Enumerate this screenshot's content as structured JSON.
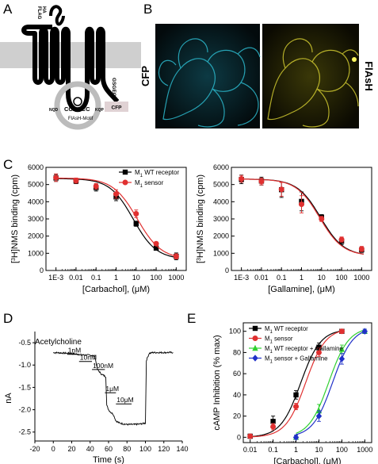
{
  "panels": {
    "a": {
      "letter": "A",
      "tag_ha": "HA",
      "tag_flag": "FLAG",
      "linker": "GSGEG",
      "cfp_label": "CFP",
      "motif_left": "NQD",
      "motif_core": "CCPGCC",
      "motif_right": "KQP",
      "motif_caption": "FlAsH-Motif"
    },
    "b": {
      "letter": "B",
      "label_left": "CFP",
      "label_right": "FlAsH",
      "colors": {
        "cfp": "#28b4c8",
        "flash": "#c8c028"
      }
    },
    "c": {
      "letter": "C",
      "charts": [
        {
          "type": "line",
          "xlabel": "[Carbachol], (μM)",
          "ylabel_pre": "[",
          "ylabel_sup": "3",
          "ylabel_post": "H]NMS binding (cpm)",
          "x_ticks": [
            "1E-3",
            "0.01",
            "0.1",
            "1",
            "10",
            "100",
            "1000"
          ],
          "y_ticks": [
            "0",
            "1000",
            "2000",
            "3000",
            "4000",
            "5000",
            "6000"
          ],
          "xlim_log10": [
            -3.5,
            3.5
          ],
          "ylim": [
            0,
            6000
          ],
          "legend": [
            {
              "pre": "M",
              "sub": "1",
              "post": " WT receptor",
              "color": "#000000",
              "marker": "square"
            },
            {
              "pre": "M",
              "sub": "1",
              "post": " sensor",
              "color": "#e03030",
              "marker": "circle"
            }
          ],
          "series": [
            {
              "points": [
                [
                  0.001,
                  5380,
                  200
                ],
                [
                  0.01,
                  5200,
                  150
                ],
                [
                  0.1,
                  4820,
                  200
                ],
                [
                  1,
                  4280,
                  220
                ],
                [
                  10,
                  2720,
                  150
                ],
                [
                  100,
                  1300,
                  120
                ],
                [
                  1000,
                  820,
                  200
                ]
              ],
              "color": "#000000",
              "marker": "square",
              "fit": {
                "top": 5350,
                "bottom": 650,
                "logEC50": 0.85,
                "slope": 0.75
              }
            },
            {
              "points": [
                [
                  0.001,
                  5400,
                  220
                ],
                [
                  0.01,
                  5230,
                  150
                ],
                [
                  0.1,
                  4900,
                  160
                ],
                [
                  1,
                  4450,
                  250
                ],
                [
                  10,
                  3300,
                  220
                ],
                [
                  100,
                  1560,
                  100
                ],
                [
                  1000,
                  820,
                  150
                ]
              ],
              "color": "#e03030",
              "marker": "circle",
              "fit": {
                "top": 5380,
                "bottom": 650,
                "logEC50": 1.05,
                "slope": 0.72
              }
            }
          ]
        },
        {
          "type": "line",
          "xlabel": "[Gallamine], (μM)",
          "ylabel_pre": "[",
          "ylabel_sup": "3",
          "ylabel_post": "H]NMS binding (cpm)",
          "x_ticks": [
            "1E-3",
            "0.01",
            "0.1",
            "1",
            "10",
            "100",
            "1000"
          ],
          "y_ticks": [
            "0",
            "1000",
            "2000",
            "3000",
            "4000",
            "5000",
            "6000"
          ],
          "xlim_log10": [
            -3.5,
            3.5
          ],
          "ylim": [
            0,
            6000
          ],
          "series": [
            {
              "points": [
                [
                  0.001,
                  5300,
                  250
                ],
                [
                  0.01,
                  5200,
                  230
                ],
                [
                  0.1,
                  4700,
                  450
                ],
                [
                  1,
                  4020,
                  550
                ],
                [
                  10,
                  3100,
                  150
                ],
                [
                  100,
                  1700,
                  200
                ],
                [
                  1000,
                  1200,
                  150
                ]
              ],
              "color": "#000000",
              "marker": "square",
              "fit": {
                "top": 5320,
                "bottom": 850,
                "logEC50": 0.95,
                "slope": 0.75
              }
            },
            {
              "points": [
                [
                  0.001,
                  5330,
                  200
                ],
                [
                  0.01,
                  5180,
                  200
                ],
                [
                  0.1,
                  4720,
                  400
                ],
                [
                  1,
                  3850,
                  500
                ],
                [
                  10,
                  3000,
                  150
                ],
                [
                  100,
                  1800,
                  150
                ],
                [
                  1000,
                  1250,
                  150
                ]
              ],
              "color": "#e03030",
              "marker": "circle",
              "fit": {
                "top": 5320,
                "bottom": 850,
                "logEC50": 0.9,
                "slope": 0.75
              }
            }
          ]
        }
      ]
    },
    "d": {
      "letter": "D",
      "type": "line",
      "xlabel": "Time (s)",
      "ylabel": "nA",
      "x_ticks": [
        "-20",
        "0",
        "20",
        "40",
        "60",
        "80",
        "100",
        "120",
        "140"
      ],
      "y_ticks": [
        "-2.5",
        "-2.0",
        "-1.5",
        "-1.0",
        "-0.5"
      ],
      "xlim": [
        -20,
        140
      ],
      "ylim": [
        -2.7,
        -0.25
      ],
      "drug_label": "Acetylcholine",
      "concentrations": [
        {
          "label": "1nM",
          "start": 15,
          "end": 28,
          "level": -0.76
        },
        {
          "label": "10nM",
          "start": 28,
          "end": 42,
          "level": -0.92
        },
        {
          "label": "100nM",
          "start": 42,
          "end": 56,
          "level": -1.1
        },
        {
          "label": "1μM",
          "start": 56,
          "end": 68,
          "level": -1.62
        },
        {
          "label": "10μM",
          "start": 68,
          "end": 85,
          "level": -1.87
        }
      ],
      "trace": [
        [
          0,
          -0.72
        ],
        [
          10,
          -0.73
        ],
        [
          20,
          -0.74
        ],
        [
          30,
          -0.77
        ],
        [
          40,
          -0.78
        ],
        [
          45,
          -0.8
        ],
        [
          48,
          -1.1
        ],
        [
          52,
          -1.2
        ],
        [
          57,
          -1.26
        ],
        [
          58,
          -1.9
        ],
        [
          60,
          -2.0
        ],
        [
          62,
          -2.05
        ],
        [
          65,
          -2.1
        ],
        [
          68,
          -2.25
        ],
        [
          72,
          -2.3
        ],
        [
          80,
          -2.33
        ],
        [
          88,
          -2.33
        ],
        [
          94,
          -2.32
        ],
        [
          100,
          -2.3
        ],
        [
          101,
          -0.9
        ],
        [
          104,
          -0.74
        ],
        [
          108,
          -0.72
        ],
        [
          118,
          -0.72
        ],
        [
          130,
          -0.72
        ]
      ]
    },
    "e": {
      "letter": "E",
      "type": "line",
      "xlabel": "[Carbachol], (μM)",
      "ylabel": "cAMP Inhibition (% max)",
      "x_ticks": [
        "0.01",
        "0.1",
        "1",
        "10",
        "100",
        "1000"
      ],
      "y_ticks": [
        "0",
        "20",
        "40",
        "60",
        "80",
        "100"
      ],
      "xlim_log10": [
        -2.3,
        3.3
      ],
      "ylim": [
        -5,
        108
      ],
      "legend": [
        {
          "pre": "M",
          "sub": "1",
          "post": " WT receptor",
          "color": "#000000",
          "marker": "square"
        },
        {
          "pre": "M",
          "sub": "1",
          "post": " sensor",
          "color": "#e03030",
          "marker": "circle"
        },
        {
          "pre": "M",
          "sub": "1",
          "post": " WT receptor + Gallamine",
          "color": "#30d030",
          "marker": "triangle"
        },
        {
          "pre": "M",
          "sub": "1",
          "post": " sensor + Gallamine",
          "color": "#2030c8",
          "marker": "diamond"
        }
      ],
      "series": [
        {
          "points": [
            [
              0.01,
              1,
              2
            ],
            [
              0.1,
              15,
              5
            ],
            [
              1,
              40,
              4
            ],
            [
              10,
              85,
              4
            ],
            [
              100,
              100,
              2
            ]
          ],
          "color": "#000000",
          "marker": "square",
          "fit": {
            "top": 102,
            "bottom": 0,
            "logEC50": 0.2,
            "slope": 1.0
          }
        },
        {
          "points": [
            [
              0.01,
              1,
              2
            ],
            [
              0.1,
              10,
              3
            ],
            [
              1,
              29,
              3
            ],
            [
              10,
              80,
              4
            ],
            [
              100,
              100,
              2
            ]
          ],
          "color": "#e03030",
          "marker": "circle",
          "fit": {
            "top": 103,
            "bottom": 0,
            "logEC50": 0.42,
            "slope": 1.0
          }
        },
        {
          "points": [
            [
              1,
              0,
              2
            ],
            [
              10,
              25,
              6
            ],
            [
              100,
              83,
              4
            ],
            [
              1000,
              100,
              2
            ]
          ],
          "color": "#30d030",
          "marker": "triangle",
          "fit": {
            "top": 104,
            "bottom": 0,
            "logEC50": 1.43,
            "slope": 1.0
          }
        },
        {
          "points": [
            [
              1,
              0,
              2
            ],
            [
              10,
              20,
              5
            ],
            [
              100,
              74,
              5
            ],
            [
              1000,
              100,
              2
            ]
          ],
          "color": "#2030c8",
          "marker": "diamond",
          "fit": {
            "top": 104,
            "bottom": 0,
            "logEC50": 1.6,
            "slope": 1.0
          }
        }
      ]
    }
  }
}
